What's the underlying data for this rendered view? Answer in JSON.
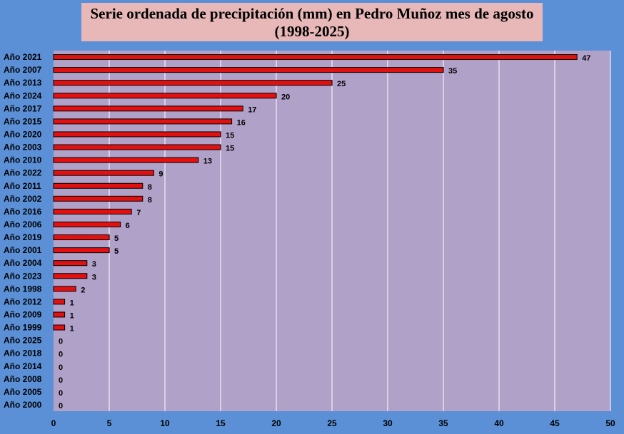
{
  "chart_data": {
    "type": "bar",
    "orientation": "horizontal",
    "title": "Serie ordenada de precipitación (mm) en Pedro Muñoz mes de agosto",
    "subtitle": "(1998-2025)",
    "xlabel": "",
    "ylabel": "",
    "xlim": [
      0,
      50
    ],
    "x_ticks": [
      0,
      5,
      10,
      15,
      20,
      25,
      30,
      35,
      40,
      45,
      50
    ],
    "grid": true,
    "legend": "none",
    "categories": [
      "Año 2021",
      "Año 2007",
      "Año 2013",
      "Año 2024",
      "Año 2017",
      "Año 2015",
      "Año 2020",
      "Año 2003",
      "Año 2010",
      "Año 2022",
      "Año 2011",
      "Año 2002",
      "Año 2016",
      "Año 2006",
      "Año 2019",
      "Año 2001",
      "Año 2004",
      "Año 2023",
      "Año 1998",
      "Año 2012",
      "Año 2009",
      "Año 1999",
      "Año 2025",
      "Año 2018",
      "Año 2014",
      "Año 2008",
      "Año 2005",
      "Año 2000"
    ],
    "values": [
      47,
      35,
      25,
      20,
      17,
      16,
      15,
      15,
      13,
      9,
      8,
      8,
      7,
      6,
      5,
      5,
      3,
      3,
      2,
      1,
      1,
      1,
      0,
      0,
      0,
      0,
      0,
      0
    ],
    "colors": {
      "bar": "#e31010",
      "bar_border": "#000000",
      "plot_background": "#b0a1c8",
      "page_background": "#5b8fd6",
      "title_background": "#e8b8b8",
      "grid": "#ffffff"
    }
  }
}
